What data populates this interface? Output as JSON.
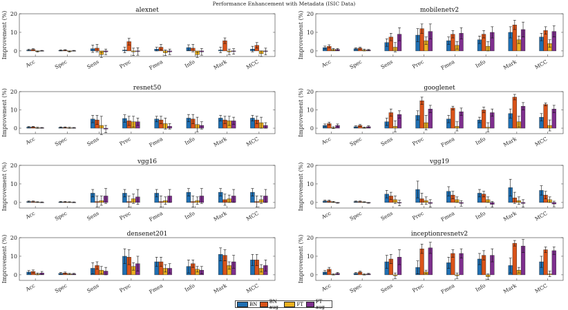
{
  "figure": {
    "title": "Performance Enhancement with Metadata (ISIC Data)"
  },
  "legend": [
    {
      "name": "BN",
      "color": "#1f6fb2"
    },
    {
      "name": "BN aug",
      "color": "#d95319"
    },
    {
      "name": "FT",
      "color": "#edb120"
    },
    {
      "name": "FT aug",
      "color": "#7e2f8e"
    }
  ],
  "chart_data": [
    {
      "type": "bar",
      "title": "alexnet",
      "ylabel": "Improvement (%)",
      "ylim": [
        -3,
        20
      ],
      "yticks": [
        0,
        10,
        20
      ],
      "categories": [
        "Acc",
        "Spec",
        "Sens",
        "Prec",
        "Fmea",
        "Info",
        "Mark",
        "MCC"
      ],
      "series": [
        {
          "name": "BN",
          "values": [
            0.5,
            0.3,
            1.2,
            0.5,
            1.0,
            1.8,
            0.5,
            1.0
          ],
          "errors": [
            0.4,
            0.3,
            2.0,
            1.5,
            1.0,
            1.5,
            1.5,
            1.5
          ]
        },
        {
          "name": "BN aug",
          "values": [
            0.8,
            0.4,
            1.5,
            5.0,
            2.0,
            1.5,
            5.5,
            3.0
          ],
          "errors": [
            0.4,
            0.3,
            2.0,
            1.8,
            1.5,
            2.0,
            1.5,
            1.5
          ]
        },
        {
          "name": "FT",
          "values": [
            -0.3,
            -0.3,
            -2.0,
            -0.5,
            -1.0,
            -2.0,
            -0.5,
            -1.5
          ],
          "errors": [
            0.3,
            0.3,
            1.5,
            2.0,
            1.5,
            1.5,
            1.5,
            1.5
          ]
        },
        {
          "name": "FT aug",
          "values": [
            0.1,
            0.1,
            -0.5,
            -0.3,
            -0.5,
            -0.5,
            -0.3,
            -0.3
          ],
          "errors": [
            0.2,
            0.2,
            1.5,
            2.0,
            1.5,
            1.8,
            1.5,
            1.8
          ]
        }
      ]
    },
    {
      "type": "bar",
      "title": "mobilenetv2",
      "ylabel": "Improvement (%)",
      "ylim": [
        -3,
        20
      ],
      "yticks": [
        0,
        10,
        20
      ],
      "categories": [
        "Acc",
        "Spec",
        "Sens",
        "Prec",
        "Fmea",
        "Info",
        "Mark",
        "MCC"
      ],
      "series": [
        {
          "name": "BN",
          "values": [
            1.8,
            1.2,
            4.5,
            8.5,
            5.5,
            6.0,
            10.0,
            7.5
          ],
          "errors": [
            0.8,
            0.5,
            2.0,
            3.5,
            2.0,
            2.0,
            3.0,
            2.0
          ]
        },
        {
          "name": "BN aug",
          "values": [
            2.5,
            1.5,
            7.5,
            12.0,
            9.0,
            9.0,
            14.0,
            11.0
          ],
          "errors": [
            0.8,
            0.5,
            2.0,
            2.5,
            2.0,
            2.0,
            2.5,
            2.0
          ]
        },
        {
          "name": "FT",
          "values": [
            0.8,
            0.5,
            2.0,
            5.5,
            3.0,
            2.5,
            6.0,
            4.0
          ],
          "errors": [
            0.5,
            0.5,
            2.5,
            2.0,
            2.0,
            2.5,
            2.0,
            2.0
          ]
        },
        {
          "name": "FT aug",
          "values": [
            0.8,
            0.5,
            9.0,
            10.5,
            9.5,
            10.0,
            11.5,
            10.5
          ],
          "errors": [
            0.5,
            0.3,
            3.5,
            4.0,
            3.0,
            3.0,
            4.0,
            3.0
          ]
        }
      ]
    },
    {
      "type": "bar",
      "title": "resnet50",
      "ylabel": "Improvement (%)",
      "ylim": [
        -3,
        20
      ],
      "yticks": [
        0,
        10,
        20
      ],
      "categories": [
        "Acc",
        "Spec",
        "Sens",
        "Prec",
        "Fmea",
        "Info",
        "Mark",
        "MCC"
      ],
      "series": [
        {
          "name": "BN",
          "values": [
            0.6,
            0.4,
            5.0,
            5.3,
            5.0,
            5.5,
            5.5,
            5.5
          ],
          "errors": [
            0.3,
            0.3,
            2.0,
            2.0,
            1.5,
            2.0,
            1.5,
            1.5
          ]
        },
        {
          "name": "BN aug",
          "values": [
            0.7,
            0.4,
            4.5,
            4.0,
            4.5,
            5.0,
            4.5,
            4.5
          ],
          "errors": [
            0.3,
            0.3,
            2.5,
            2.5,
            2.0,
            2.5,
            2.0,
            2.0
          ]
        },
        {
          "name": "FT",
          "values": [
            0.2,
            0.2,
            1.5,
            3.5,
            2.5,
            2.0,
            4.0,
            3.0
          ],
          "errors": [
            0.3,
            0.3,
            5.0,
            3.0,
            3.0,
            4.0,
            2.5,
            3.0
          ]
        },
        {
          "name": "FT aug",
          "values": [
            0.2,
            0.2,
            -0.5,
            3.5,
            1.0,
            1.5,
            4.0,
            1.5
          ],
          "errors": [
            0.2,
            0.2,
            2.0,
            2.0,
            1.5,
            2.0,
            2.0,
            1.5
          ]
        }
      ]
    },
    {
      "type": "bar",
      "title": "googlenet",
      "ylabel": "Improvement (%)",
      "ylim": [
        -3,
        20
      ],
      "yticks": [
        0,
        10,
        20
      ],
      "categories": [
        "Acc",
        "Spec",
        "Sens",
        "Prec",
        "Fmea",
        "Info",
        "Mark",
        "MCC"
      ],
      "series": [
        {
          "name": "BN",
          "values": [
            1.5,
            0.8,
            3.5,
            7.0,
            5.0,
            4.5,
            8.0,
            6.0
          ],
          "errors": [
            0.8,
            0.5,
            2.0,
            2.5,
            2.0,
            1.5,
            2.5,
            2.0
          ]
        },
        {
          "name": "BN aug",
          "values": [
            2.5,
            1.5,
            8.5,
            15.0,
            11.0,
            10.0,
            17.0,
            13.0
          ],
          "errors": [
            0.8,
            0.5,
            2.0,
            2.0,
            1.0,
            1.5,
            1.5,
            0.8
          ]
        },
        {
          "name": "FT",
          "values": [
            0.3,
            0.3,
            1.0,
            3.0,
            1.0,
            0.5,
            3.5,
            1.5
          ],
          "errors": [
            0.5,
            0.3,
            3.0,
            4.0,
            2.5,
            2.5,
            3.0,
            3.0
          ]
        },
        {
          "name": "FT aug",
          "values": [
            1.5,
            0.8,
            7.5,
            10.5,
            9.0,
            8.5,
            12.0,
            10.5
          ],
          "errors": [
            0.8,
            0.5,
            2.0,
            2.0,
            2.0,
            2.0,
            2.0,
            2.0
          ]
        }
      ]
    },
    {
      "type": "bar",
      "title": "vgg16",
      "ylabel": "Improvement (%)",
      "ylim": [
        -3,
        20
      ],
      "yticks": [
        0,
        10,
        20
      ],
      "categories": [
        "Acc",
        "Spec",
        "Sens",
        "Prec",
        "Fmea",
        "Info",
        "Mark",
        "MCC"
      ],
      "series": [
        {
          "name": "BN",
          "values": [
            0.5,
            0.3,
            5.0,
            5.0,
            5.0,
            5.5,
            5.5,
            5.5
          ],
          "errors": [
            0.3,
            0.3,
            2.0,
            2.0,
            2.0,
            2.0,
            2.0,
            2.0
          ]
        },
        {
          "name": "BN aug",
          "values": [
            0.5,
            0.3,
            0.5,
            0.5,
            0.5,
            0.5,
            1.5,
            0.5
          ],
          "errors": [
            0.3,
            0.3,
            3.0,
            3.0,
            3.0,
            3.0,
            3.0,
            3.0
          ]
        },
        {
          "name": "FT",
          "values": [
            0.2,
            0.2,
            1.0,
            2.0,
            1.0,
            1.0,
            2.0,
            1.5
          ],
          "errors": [
            0.2,
            0.2,
            2.5,
            2.5,
            2.0,
            2.0,
            2.0,
            2.0
          ]
        },
        {
          "name": "FT aug",
          "values": [
            0.1,
            0.1,
            3.5,
            3.0,
            3.5,
            3.5,
            3.5,
            3.5
          ],
          "errors": [
            0.2,
            0.2,
            4.0,
            4.0,
            3.5,
            4.0,
            3.5,
            3.5
          ]
        }
      ]
    },
    {
      "type": "bar",
      "title": "vgg19",
      "ylabel": "Improvement (%)",
      "ylim": [
        -3,
        20
      ],
      "yticks": [
        0,
        10,
        20
      ],
      "categories": [
        "Acc",
        "Spec",
        "Sens",
        "Prec",
        "Fmea",
        "Info",
        "Mark",
        "MCC"
      ],
      "series": [
        {
          "name": "BN",
          "values": [
            0.8,
            0.5,
            4.5,
            7.0,
            6.0,
            5.0,
            8.0,
            6.5
          ],
          "errors": [
            0.5,
            0.3,
            2.0,
            4.5,
            2.5,
            2.0,
            4.5,
            2.5
          ]
        },
        {
          "name": "BN aug",
          "values": [
            0.8,
            0.5,
            3.5,
            2.0,
            4.0,
            4.5,
            2.5,
            4.0
          ],
          "errors": [
            0.5,
            0.3,
            2.0,
            3.0,
            2.0,
            1.5,
            3.0,
            2.0
          ]
        },
        {
          "name": "FT",
          "values": [
            0.3,
            0.2,
            1.5,
            1.0,
            1.5,
            1.5,
            1.0,
            1.5
          ],
          "errors": [
            0.3,
            0.2,
            2.0,
            2.0,
            1.5,
            1.5,
            2.0,
            1.5
          ]
        },
        {
          "name": "FT aug",
          "values": [
            -0.2,
            -0.2,
            -0.3,
            -0.5,
            -0.5,
            -1.0,
            -0.5,
            -0.8
          ],
          "errors": [
            0.2,
            0.2,
            1.5,
            2.0,
            1.5,
            1.5,
            2.0,
            1.5
          ]
        }
      ]
    },
    {
      "type": "bar",
      "title": "densenet201",
      "ylabel": "Improvement (%)",
      "ylim": [
        -3,
        20
      ],
      "yticks": [
        0,
        10,
        20
      ],
      "categories": [
        "Acc",
        "Spec",
        "Sens",
        "Prec",
        "Fmea",
        "Info",
        "Mark",
        "MCC"
      ],
      "series": [
        {
          "name": "BN",
          "values": [
            1.5,
            0.8,
            3.5,
            10.0,
            7.0,
            4.5,
            11.0,
            8.0
          ],
          "errors": [
            0.8,
            0.5,
            3.0,
            4.0,
            2.5,
            3.5,
            3.5,
            3.0
          ]
        },
        {
          "name": "BN aug",
          "values": [
            1.8,
            1.0,
            5.0,
            9.5,
            7.0,
            6.0,
            10.5,
            8.0
          ],
          "errors": [
            0.8,
            0.5,
            2.0,
            4.0,
            2.5,
            2.0,
            3.0,
            3.0
          ]
        },
        {
          "name": "FT",
          "values": [
            0.5,
            0.5,
            2.5,
            4.5,
            3.5,
            3.0,
            5.0,
            3.5
          ],
          "errors": [
            0.5,
            0.3,
            2.0,
            2.0,
            2.0,
            1.5,
            2.0,
            2.0
          ]
        },
        {
          "name": "FT aug",
          "values": [
            1.0,
            0.5,
            2.0,
            6.0,
            3.5,
            2.5,
            7.0,
            5.0
          ],
          "errors": [
            0.8,
            0.3,
            2.0,
            4.0,
            2.5,
            2.0,
            3.5,
            3.0
          ]
        }
      ]
    },
    {
      "type": "bar",
      "title": "inceptionresnetv2",
      "ylabel": "Improvement (%)",
      "ylim": [
        -3,
        20
      ],
      "yticks": [
        0,
        10,
        20
      ],
      "categories": [
        "Acc",
        "Spec",
        "Sens",
        "Prec",
        "Fmea",
        "Info",
        "Mark",
        "MCC"
      ],
      "series": [
        {
          "name": "BN",
          "values": [
            1.5,
            0.8,
            7.0,
            4.0,
            6.5,
            8.5,
            5.0,
            7.0
          ],
          "errors": [
            0.8,
            0.5,
            3.5,
            3.5,
            3.0,
            3.0,
            4.0,
            3.0
          ]
        },
        {
          "name": "BN aug",
          "values": [
            3.0,
            1.5,
            8.5,
            14.0,
            11.5,
            10.5,
            17.0,
            13.5
          ],
          "errors": [
            1.0,
            0.5,
            2.5,
            2.5,
            2.0,
            2.5,
            1.5,
            1.5
          ]
        },
        {
          "name": "FT",
          "values": [
            0.2,
            0.2,
            -0.5,
            1.5,
            -0.5,
            -1.0,
            2.5,
            0.5
          ],
          "errors": [
            0.3,
            0.3,
            1.5,
            1.0,
            1.5,
            1.5,
            1.5,
            1.5
          ]
        },
        {
          "name": "FT aug",
          "values": [
            0.8,
            0.5,
            9.5,
            14.5,
            11.5,
            10.5,
            15.5,
            13.0
          ],
          "errors": [
            0.5,
            0.3,
            4.0,
            3.0,
            2.5,
            3.5,
            3.5,
            2.0
          ]
        }
      ]
    }
  ]
}
